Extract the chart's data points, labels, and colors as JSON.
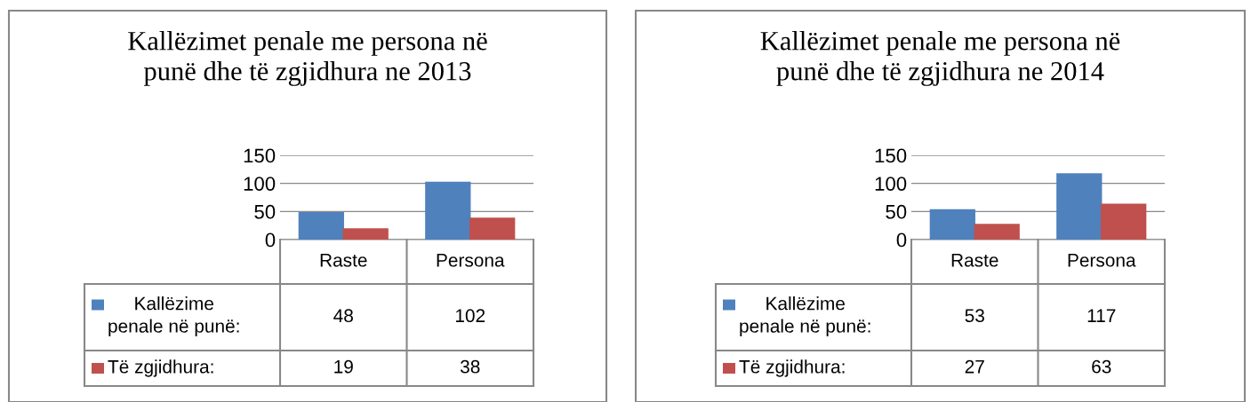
{
  "chart_data": [
    {
      "type": "bar",
      "title": "Kallëzimet penale me persona në punë dhe të zgjidhura ne 2013",
      "categories": [
        "Raste",
        "Persona"
      ],
      "series": [
        {
          "name": "Kallëzime penale në punë:",
          "color": "#4f81bd",
          "values": [
            48,
            102
          ]
        },
        {
          "name": "Të zgjidhura:",
          "color": "#c0504d",
          "values": [
            19,
            38
          ]
        }
      ],
      "ylim": [
        0,
        150
      ],
      "yticks": [
        0,
        50,
        100,
        150
      ],
      "grid": "y",
      "data_labels": true,
      "legend": "bottom left"
    },
    {
      "type": "bar",
      "title": "Kallëzimet penale me persona në punë dhe të zgjidhura ne 2014",
      "categories": [
        "Raste",
        "Persona"
      ],
      "series": [
        {
          "name": "Kallëzime penale në punë:",
          "color": "#4f81bd",
          "values": [
            53,
            117
          ]
        },
        {
          "name": "Të zgjidhura:",
          "color": "#c0504d",
          "values": [
            27,
            63
          ]
        }
      ],
      "ylim": [
        0,
        150
      ],
      "yticks": [
        0,
        50,
        100,
        150
      ],
      "grid": "y",
      "data_labels": true,
      "legend": "bottom left"
    }
  ]
}
